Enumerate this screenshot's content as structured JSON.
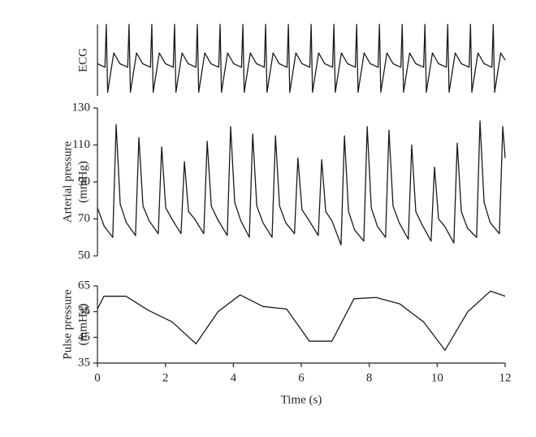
{
  "chart_data": [
    {
      "type": "line",
      "ylabel": [
        "ECG"
      ],
      "xlim": [
        0,
        12
      ],
      "ylim": [
        0,
        1
      ],
      "color": "#1a1a1a",
      "x": [
        0,
        0.22,
        0.26,
        0.3,
        0.48,
        0.66,
        0.89,
        0.93,
        0.97,
        1.15,
        1.33,
        1.56,
        1.6,
        1.64,
        1.82,
        2.0,
        2.23,
        2.27,
        2.31,
        2.49,
        2.67,
        2.9,
        2.94,
        2.98,
        3.16,
        3.34,
        3.57,
        3.61,
        3.65,
        3.83,
        4.01,
        4.24,
        4.28,
        4.32,
        4.5,
        4.68,
        4.91,
        4.95,
        4.99,
        5.17,
        5.35,
        5.58,
        5.62,
        5.66,
        5.84,
        6.02,
        6.25,
        6.29,
        6.33,
        6.51,
        6.69,
        6.92,
        6.96,
        7.0,
        7.18,
        7.36,
        7.59,
        7.63,
        7.67,
        7.85,
        8.03,
        8.26,
        8.3,
        8.34,
        8.52,
        8.7,
        8.93,
        8.97,
        9.01,
        9.19,
        9.37,
        9.6,
        9.64,
        9.68,
        9.86,
        10.04,
        10.27,
        10.31,
        10.35,
        10.53,
        10.71,
        10.94,
        10.98,
        11.02,
        11.2,
        11.38,
        11.61,
        11.65,
        11.69,
        11.87,
        12
      ],
      "values": [
        0.45,
        0.4,
        1,
        0.05,
        0.6,
        0.45,
        0.4,
        1,
        0.05,
        0.6,
        0.45,
        0.4,
        1,
        0.05,
        0.6,
        0.45,
        0.4,
        1,
        0.05,
        0.6,
        0.45,
        0.4,
        1,
        0.05,
        0.6,
        0.45,
        0.4,
        1,
        0.05,
        0.6,
        0.45,
        0.4,
        1,
        0.05,
        0.6,
        0.45,
        0.4,
        1,
        0.05,
        0.6,
        0.45,
        0.4,
        1,
        0.05,
        0.6,
        0.45,
        0.4,
        1,
        0.05,
        0.6,
        0.45,
        0.4,
        1,
        0.05,
        0.6,
        0.45,
        0.4,
        1,
        0.05,
        0.6,
        0.45,
        0.4,
        1,
        0.05,
        0.6,
        0.45,
        0.4,
        1,
        0.05,
        0.6,
        0.45,
        0.4,
        1,
        0.05,
        0.6,
        0.45,
        0.4,
        1,
        0.05,
        0.6,
        0.45,
        0.4,
        1,
        0.05,
        0.6,
        0.45,
        0.4,
        1,
        0.05,
        0.6,
        0.5
      ]
    },
    {
      "type": "line",
      "ylabel": [
        "Arterial pressure",
        "(mmHg)"
      ],
      "xlim": [
        0,
        12
      ],
      "ylim": [
        50,
        130
      ],
      "yticks": [
        50,
        70,
        90,
        110,
        130
      ],
      "color": "#1a1a1a",
      "x": [
        0,
        0.2,
        0.45,
        0.55,
        0.67,
        0.85,
        1.12,
        1.22,
        1.34,
        1.52,
        1.79,
        1.89,
        2.01,
        2.19,
        2.46,
        2.56,
        2.68,
        2.86,
        3.13,
        3.23,
        3.35,
        3.53,
        3.82,
        3.92,
        4.04,
        4.22,
        4.47,
        4.57,
        4.69,
        4.87,
        5.14,
        5.24,
        5.36,
        5.54,
        5.8,
        5.9,
        6.02,
        6.2,
        6.5,
        6.6,
        6.72,
        6.9,
        7.17,
        7.27,
        7.39,
        7.57,
        7.84,
        7.94,
        8.06,
        8.24,
        8.48,
        8.58,
        8.7,
        8.88,
        9.15,
        9.25,
        9.37,
        9.55,
        9.82,
        9.92,
        10.04,
        10.22,
        10.49,
        10.59,
        10.71,
        10.89,
        11.16,
        11.26,
        11.38,
        11.56,
        11.83,
        11.93,
        12
      ],
      "values": [
        76,
        66,
        60,
        121,
        78,
        68,
        61,
        114,
        77,
        69,
        62,
        109,
        76,
        70,
        62,
        101,
        74,
        70,
        62,
        112,
        77,
        70,
        61,
        120,
        79,
        69,
        60,
        116,
        77,
        68,
        60,
        115,
        77,
        68,
        62,
        103,
        75,
        70,
        61,
        102,
        74,
        69,
        56,
        115,
        74,
        64,
        58,
        120,
        76,
        66,
        60,
        118,
        77,
        68,
        59,
        110,
        74,
        67,
        58,
        98,
        70,
        66,
        57,
        111,
        74,
        65,
        60,
        123,
        79,
        68,
        62,
        120,
        103
      ]
    },
    {
      "type": "line",
      "ylabel": [
        "Pulse pressure",
        "(mmHg)"
      ],
      "xlabel": "Time (s)",
      "xlim": [
        0,
        12
      ],
      "xticks": [
        0,
        2,
        4,
        6,
        8,
        10,
        12
      ],
      "ylim": [
        35,
        65
      ],
      "yticks": [
        35,
        45,
        55,
        65
      ],
      "color": "#1a1a1a",
      "x": [
        0,
        0.19,
        0.84,
        1.5,
        2.2,
        2.9,
        3.55,
        4.2,
        4.87,
        5.57,
        6.24,
        6.9,
        7.55,
        8.2,
        8.9,
        9.6,
        10.23,
        10.9,
        11.57,
        12
      ],
      "values": [
        56,
        61,
        61,
        55.5,
        51,
        42.5,
        55,
        61.5,
        57,
        56,
        43.5,
        43.5,
        60,
        60.5,
        58,
        51,
        40,
        55,
        63,
        61
      ]
    }
  ]
}
